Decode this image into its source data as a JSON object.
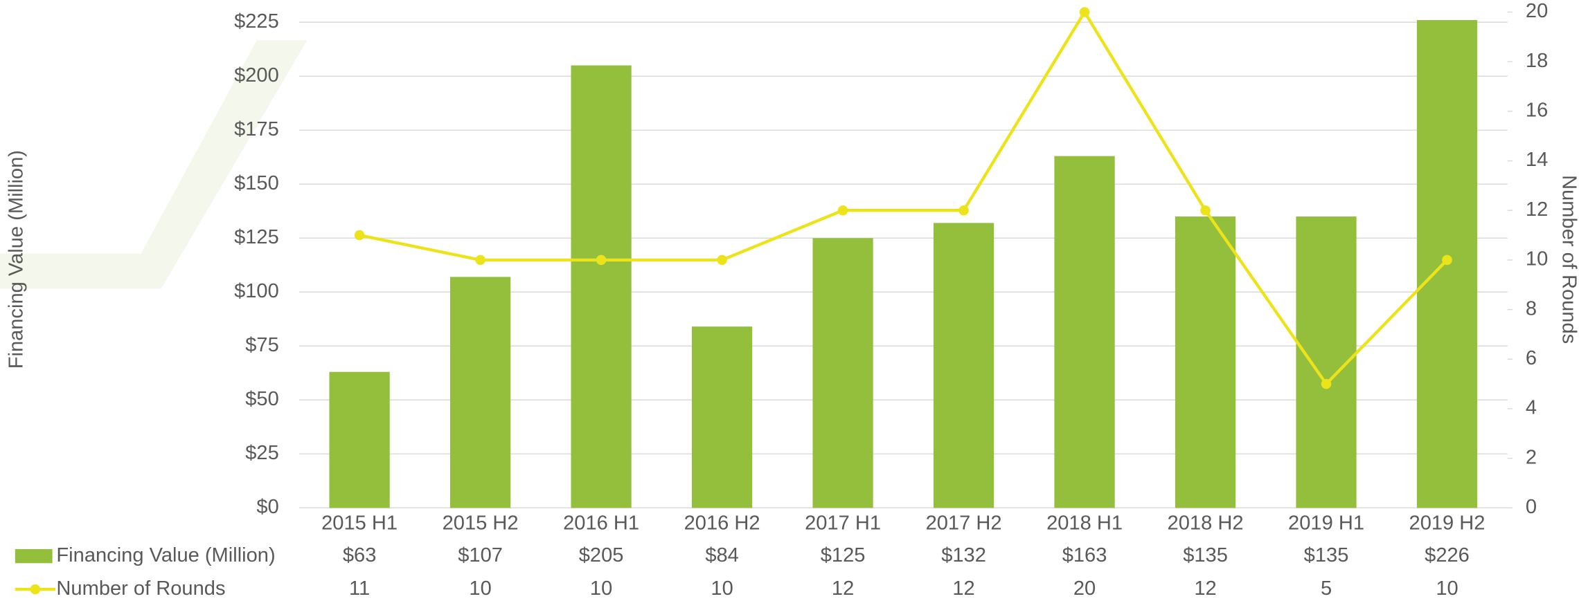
{
  "chart_data": {
    "type": "bar",
    "y_axis_label": "Financing Value (Million)",
    "y2_axis_label": "Number of Rounds",
    "categories": [
      "2015 H1",
      "2015 H2",
      "2016 H1",
      "2016 H2",
      "2017 H1",
      "2017 H2",
      "2018 H1",
      "2018 H2",
      "2019 H1",
      "2019 H2"
    ],
    "series": [
      {
        "name": "Financing Value (Million)",
        "type": "bar",
        "color": "#94bf3d",
        "values": [
          63,
          107,
          205,
          84,
          125,
          132,
          163,
          135,
          135,
          226
        ],
        "value_labels": [
          "$63",
          "$107",
          "$205",
          "$84",
          "$125",
          "$132",
          "$163",
          "$135",
          "$135",
          "$226"
        ]
      },
      {
        "name": "Number of Rounds",
        "type": "line",
        "axis": "y2",
        "color": "#ede31a",
        "values": [
          11,
          10,
          10,
          10,
          12,
          12,
          20,
          12,
          5,
          10
        ]
      }
    ],
    "ylim": [
      0,
      229.7
    ],
    "yticks": [
      {
        "value": 0,
        "label": "$0"
      },
      {
        "value": 25,
        "label": "$25"
      },
      {
        "value": 50,
        "label": "$50"
      },
      {
        "value": 75,
        "label": "$75"
      },
      {
        "value": 100,
        "label": "$100"
      },
      {
        "value": 125,
        "label": "$125"
      },
      {
        "value": 150,
        "label": "$150"
      },
      {
        "value": 175,
        "label": "$175"
      },
      {
        "value": 200,
        "label": "$200"
      },
      {
        "value": 225,
        "label": "$225"
      }
    ],
    "y2lim": [
      0,
      20
    ],
    "y2ticks": [
      0,
      2,
      4,
      6,
      8,
      10,
      12,
      14,
      16,
      18,
      20
    ],
    "grid": true
  }
}
